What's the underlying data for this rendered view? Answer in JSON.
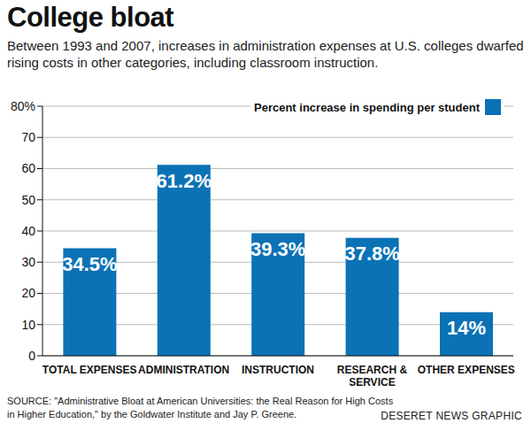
{
  "chart_data": {
    "type": "bar",
    "title": "College bloat",
    "subtitle": "Between 1993 and 2007, increases in administration expenses at U.S. colleges dwarfed rising costs in other categories, including classroom instruction.",
    "categories": [
      "TOTAL EXPENSES",
      "ADMINISTRATION",
      "INSTRUCTION",
      "RESEARCH & SERVICE",
      "OTHER EXPENSES"
    ],
    "series": [
      {
        "name": "Percent increase in spending per student",
        "color": "#0b72b5",
        "values": [
          34.5,
          61.2,
          39.3,
          37.8,
          14
        ],
        "value_labels": [
          "34.5%",
          "61.2%",
          "39.3%",
          "37.8%",
          "14%"
        ]
      }
    ],
    "ylim": [
      0,
      80
    ],
    "yticks": [
      0,
      10,
      20,
      30,
      40,
      50,
      60,
      70,
      {
        "value": 80,
        "label": "80%"
      }
    ],
    "grid": true,
    "legend": "upper right",
    "data_labels": true,
    "annotations": [
      "SOURCE: \"Administrative Bloat at American Universities: the Real Reason for High Costs in Higher Education,\" by the Goldwater Institute and Jay P. Greene.",
      "DESERET NEWS GRAPHIC"
    ]
  }
}
